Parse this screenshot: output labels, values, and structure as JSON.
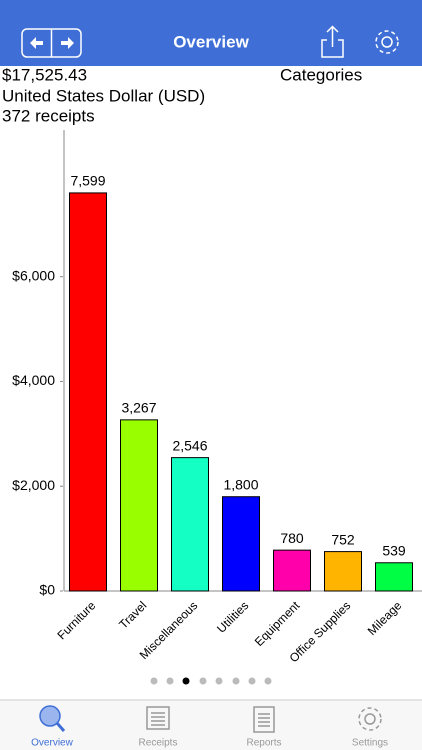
{
  "header": {
    "title": "Overview"
  },
  "summary": {
    "total": "$17,525.43",
    "currency": "United States Dollar (USD)",
    "receipts": "372 receipts",
    "view": "Categories"
  },
  "chart_data": {
    "type": "bar",
    "categories": [
      "Furniture",
      "Travel",
      "Miscellaneous",
      "Utilities",
      "Equipment",
      "Office Supplies",
      "Mileage"
    ],
    "values": [
      7599,
      3267,
      2546,
      1800,
      780,
      752,
      539
    ],
    "value_labels": [
      "7,599",
      "3,267",
      "2,546",
      "1,800",
      "780",
      "752",
      "539"
    ],
    "colors": [
      "#ff0000",
      "#99ff00",
      "#14ffc4",
      "#0000ff",
      "#ff00aa",
      "#ffb400",
      "#00ff44"
    ],
    "ylim": [
      0,
      8800
    ],
    "yticks": [
      {
        "value": 0,
        "label": "$0"
      },
      {
        "value": 2000,
        "label": "$2,000"
      },
      {
        "value": 4000,
        "label": "$4,000"
      },
      {
        "value": 6000,
        "label": "$6,000"
      }
    ],
    "grid": false
  },
  "tabs": [
    {
      "label": "Overview",
      "active": true
    },
    {
      "label": "Receipts",
      "active": false
    },
    {
      "label": "Reports",
      "active": false
    },
    {
      "label": "Settings",
      "active": false
    }
  ]
}
